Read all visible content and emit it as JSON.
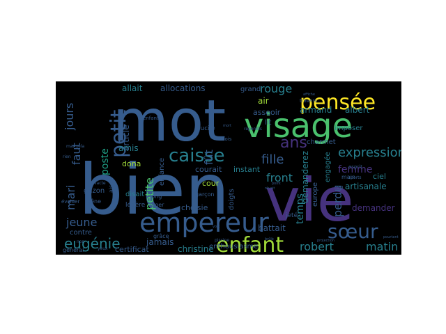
{
  "wordcloud": {
    "background": "#000000",
    "palette": [
      "#440154",
      "#46327e",
      "#365c8d",
      "#277f8e",
      "#1fa187",
      "#4ac16d",
      "#a0da39",
      "#fde725"
    ],
    "words": [
      {
        "text": "mot",
        "color": "#365c8d"
      },
      {
        "text": "bien",
        "color": "#365c8d"
      },
      {
        "text": "vie",
        "color": "#46327e"
      },
      {
        "text": "visage",
        "color": "#4ac16d"
      },
      {
        "text": "pensée",
        "color": "#fde725"
      },
      {
        "text": "empereur",
        "color": "#365c8d"
      },
      {
        "text": "enfant",
        "color": "#a0da39"
      },
      {
        "text": "sœur",
        "color": "#365c8d"
      },
      {
        "text": "caisse",
        "color": "#277f8e"
      },
      {
        "text": "petit",
        "color": "#365c8d"
      },
      {
        "text": "ans",
        "color": "#46327e"
      },
      {
        "text": "eugénie",
        "color": "#277f8e"
      },
      {
        "text": "expression",
        "color": "#277f8e"
      },
      {
        "text": "fille",
        "color": "#365c8d"
      },
      {
        "text": "rouge",
        "color": "#277f8e"
      },
      {
        "text": "robert",
        "color": "#277f8e"
      },
      {
        "text": "matin",
        "color": "#277f8e"
      },
      {
        "text": "jeune",
        "color": "#365c8d"
      },
      {
        "text": "jours",
        "color": "#365c8d"
      },
      {
        "text": "faut",
        "color": "#365c8d"
      },
      {
        "text": "mari",
        "color": "#365c8d"
      },
      {
        "text": "petite",
        "color": "#4ac16d"
      },
      {
        "text": "fût",
        "color": "#365c8d"
      },
      {
        "text": "femme",
        "color": "#46327e"
      },
      {
        "text": "front",
        "color": "#277f8e"
      },
      {
        "text": "temps",
        "color": "#277f8e"
      },
      {
        "text": "perdu",
        "color": "#365c8d"
      },
      {
        "text": "allait",
        "color": "#277f8e"
      },
      {
        "text": "allocations",
        "color": "#365c8d"
      },
      {
        "text": "armand",
        "color": "#277f8e"
      },
      {
        "text": "albert",
        "color": "#277f8e"
      },
      {
        "text": "jamais",
        "color": "#365c8d"
      },
      {
        "text": "poste",
        "color": "#1fa187"
      },
      {
        "text": "article",
        "color": "#365c8d"
      },
      {
        "text": "amis",
        "color": "#277f8e"
      },
      {
        "text": "christine",
        "color": "#277f8e"
      },
      {
        "text": "artisanale",
        "color": "#277f8e"
      },
      {
        "text": "demander",
        "color": "#46327e"
      },
      {
        "text": "demanderez",
        "color": "#277f8e"
      },
      {
        "text": "battait",
        "color": "#365c8d"
      },
      {
        "text": "certificat",
        "color": "#365c8d"
      },
      {
        "text": "air",
        "color": "#a0da39"
      },
      {
        "text": "asseoir",
        "color": "#365c8d"
      },
      {
        "text": "cour",
        "color": "#a0da39"
      },
      {
        "text": "ciel",
        "color": "#277f8e"
      },
      {
        "text": "courait",
        "color": "#365c8d"
      },
      {
        "text": "instant",
        "color": "#277f8e"
      },
      {
        "text": "choisie",
        "color": "#365c8d"
      },
      {
        "text": "dona",
        "color": "#a0da39"
      },
      {
        "text": "enthousiasme",
        "color": "#365c8d"
      },
      {
        "text": "grand",
        "color": "#365c8d"
      },
      {
        "text": "charmet",
        "color": "#365c8d"
      },
      {
        "text": "imposer",
        "color": "#277f8e"
      },
      {
        "text": "lit",
        "color": "#365c8d"
      },
      {
        "text": "contre",
        "color": "#365c8d"
      },
      {
        "text": "europe",
        "color": "#365c8d"
      },
      {
        "text": "gazon",
        "color": "#365c8d"
      },
      {
        "text": "garçon",
        "color": "#365c8d"
      },
      {
        "text": "enfance",
        "color": "#365c8d"
      },
      {
        "text": "disait",
        "color": "#277f8e"
      },
      {
        "text": "long",
        "color": "#365c8d"
      },
      {
        "text": "léger",
        "color": "#365c8d"
      },
      {
        "text": "légère",
        "color": "#365c8d"
      },
      {
        "text": "doigts",
        "color": "#365c8d"
      },
      {
        "text": "engagée",
        "color": "#277f8e"
      },
      {
        "text": "lucile",
        "color": "#365c8d"
      },
      {
        "text": "général",
        "color": "#365c8d"
      },
      {
        "text": "grâce",
        "color": "#365c8d"
      },
      {
        "text": "jeté",
        "color": "#365c8d"
      },
      {
        "text": "main",
        "color": "#365c8d"
      },
      {
        "text": "fois",
        "color": "#365c8d"
      },
      {
        "text": "gêne",
        "color": "#365c8d"
      },
      {
        "text": "yeux",
        "color": "#365c8d"
      },
      {
        "text": "esprit",
        "color": "#365c8d"
      },
      {
        "text": "tard",
        "color": "#365c8d"
      },
      {
        "text": "enfants",
        "color": "#365c8d"
      },
      {
        "text": "évoluer",
        "color": "#365c8d"
      },
      {
        "text": "sports",
        "color": "#365c8d"
      },
      {
        "text": "travers",
        "color": "#365c8d"
      },
      {
        "text": "répondis",
        "color": "#365c8d"
      },
      {
        "text": "point",
        "color": "#365c8d"
      },
      {
        "text": "rêvait",
        "color": "#365c8d"
      },
      {
        "text": "voix",
        "color": "#365c8d"
      },
      {
        "text": "projection",
        "color": "#365c8d"
      },
      {
        "text": "pourtant",
        "color": "#365c8d"
      },
      {
        "text": "vacte",
        "color": "#365c8d"
      },
      {
        "text": "piscine",
        "color": "#365c8d"
      },
      {
        "text": "affiche",
        "color": "#365c8d"
      },
      {
        "text": "rien",
        "color": "#365c8d"
      },
      {
        "text": "manuela",
        "color": "#365c8d"
      },
      {
        "text": "aise",
        "color": "#365c8d"
      },
      {
        "text": "non",
        "color": "#365c8d"
      },
      {
        "text": "mort",
        "color": "#365c8d"
      },
      {
        "text": "brûlé",
        "color": "#365c8d"
      }
    ]
  }
}
